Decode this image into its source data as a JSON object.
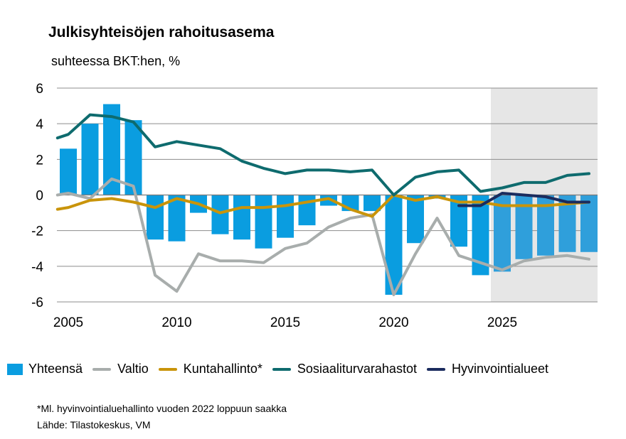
{
  "chart_data": {
    "type": "bar+line",
    "title": "Julkisyhteisöjen rahoitusasema",
    "subtitle": "suhteessa BKT:hen, %",
    "x_tick_labels": [
      "2005",
      "2010",
      "2015",
      "2020",
      "2025"
    ],
    "x_ticks": [
      2005,
      2010,
      2015,
      2020,
      2025
    ],
    "xlim": [
      2005,
      2030
    ],
    "y_tick_labels": [
      "6",
      "4",
      "2",
      "0",
      "-2",
      "-4",
      "-6"
    ],
    "y_ticks": [
      6,
      4,
      2,
      0,
      -2,
      -4,
      -6
    ],
    "ylim": [
      -6,
      6
    ],
    "forecast_shading_from": 2025,
    "bars": {
      "name": "Yhteensä",
      "color": "#0a9de0",
      "forecast_color": "#2f9fdb",
      "x": [
        2005,
        2006,
        2007,
        2008,
        2009,
        2010,
        2011,
        2012,
        2013,
        2014,
        2015,
        2016,
        2017,
        2018,
        2019,
        2020,
        2021,
        2022,
        2023,
        2024,
        2025,
        2026,
        2027,
        2028,
        2029
      ],
      "values": [
        2.6,
        4.0,
        5.1,
        4.2,
        -2.5,
        -2.6,
        -1.0,
        -2.2,
        -2.5,
        -3.0,
        -2.4,
        -1.7,
        -0.6,
        -0.9,
        -0.9,
        -5.6,
        -2.7,
        -0.2,
        -2.9,
        -4.5,
        -4.3,
        -3.6,
        -3.4,
        -3.2,
        -3.2
      ]
    },
    "series": [
      {
        "name": "Valtio",
        "color": "#a8adac",
        "x": [
          2004.5,
          2005,
          2006,
          2007,
          2008,
          2009,
          2010,
          2011,
          2012,
          2013,
          2014,
          2015,
          2016,
          2017,
          2018,
          2019,
          2020,
          2021,
          2022,
          2023,
          2024,
          2025,
          2026,
          2027,
          2028,
          2029
        ],
        "values": [
          0.0,
          0.1,
          -0.2,
          0.9,
          0.5,
          -4.5,
          -5.4,
          -3.3,
          -3.7,
          -3.7,
          -3.8,
          -3.0,
          -2.7,
          -1.8,
          -1.3,
          -1.1,
          -5.6,
          -3.3,
          -1.3,
          -3.4,
          -3.8,
          -4.2,
          -3.7,
          -3.5,
          -3.4,
          -3.6
        ]
      },
      {
        "name": "Kuntahallinto*",
        "color": "#c9940a",
        "x": [
          2004.5,
          2005,
          2006,
          2007,
          2008,
          2009,
          2010,
          2011,
          2012,
          2013,
          2014,
          2015,
          2016,
          2017,
          2018,
          2019,
          2020,
          2021,
          2022,
          2023,
          2024,
          2025,
          2026,
          2027,
          2028,
          2029
        ],
        "values": [
          -0.8,
          -0.7,
          -0.3,
          -0.2,
          -0.4,
          -0.7,
          -0.2,
          -0.5,
          -1.0,
          -0.7,
          -0.7,
          -0.6,
          -0.4,
          -0.2,
          -0.8,
          -1.2,
          0.0,
          -0.3,
          -0.1,
          -0.4,
          -0.4,
          -0.6,
          -0.6,
          -0.6,
          -0.5,
          -0.4
        ]
      },
      {
        "name": "Sosiaaliturvarahastot",
        "color": "#0e6b6e",
        "x": [
          2004.5,
          2005,
          2006,
          2007,
          2008,
          2009,
          2010,
          2011,
          2012,
          2013,
          2014,
          2015,
          2016,
          2017,
          2018,
          2019,
          2020,
          2021,
          2022,
          2023,
          2024,
          2025,
          2026,
          2027,
          2028,
          2029
        ],
        "values": [
          3.2,
          3.4,
          4.5,
          4.4,
          4.1,
          2.7,
          3.0,
          2.8,
          2.6,
          1.9,
          1.5,
          1.2,
          1.4,
          1.4,
          1.3,
          1.4,
          0.0,
          1.0,
          1.3,
          1.4,
          0.2,
          0.4,
          0.7,
          0.7,
          1.1,
          1.2
        ]
      },
      {
        "name": "Hyvinvointialueet",
        "color": "#1b2c5e",
        "x": [
          2023,
          2024,
          2025,
          2026,
          2027,
          2028,
          2029
        ],
        "values": [
          -0.6,
          -0.6,
          0.1,
          0.0,
          -0.1,
          -0.4,
          -0.4
        ]
      }
    ]
  },
  "legend": [
    {
      "label": "Yhteensä",
      "kind": "bar",
      "color": "#0a9de0"
    },
    {
      "label": "Valtio",
      "kind": "line",
      "color": "#a8adac"
    },
    {
      "label": "Kuntahallinto*",
      "kind": "line",
      "color": "#c9940a"
    },
    {
      "label": "Sosiaaliturvarahastot",
      "kind": "line",
      "color": "#0e6b6e"
    },
    {
      "label": "Hyvinvointialueet",
      "kind": "line",
      "color": "#1b2c5e"
    }
  ],
  "footnote": "*Ml. hyvinvointialuehallinto  vuoden 2022 loppuun saakka",
  "source": "Lähde: Tilastokeskus, VM"
}
